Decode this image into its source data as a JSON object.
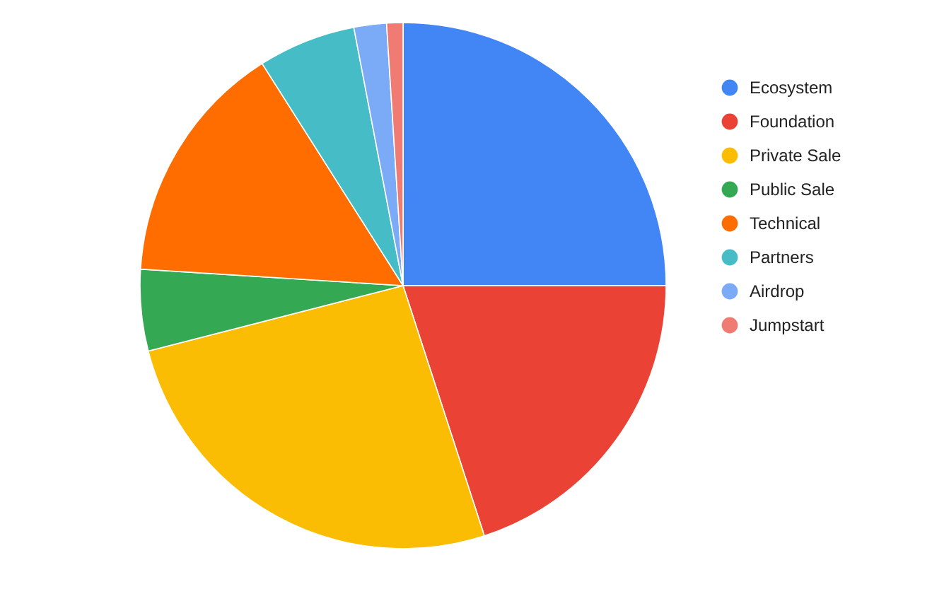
{
  "chart_data": {
    "type": "pie",
    "categories": [
      "Ecosystem",
      "Foundation",
      "Private Sale",
      "Public Sale",
      "Technical",
      "Partners",
      "Airdrop",
      "Jumpstart"
    ],
    "values": [
      25,
      20,
      26,
      5,
      15,
      6,
      2,
      1
    ],
    "colors": [
      "#4285f4",
      "#ea4335",
      "#fbbc04",
      "#34a853",
      "#ff6d01",
      "#46bdc6",
      "#7baaf7",
      "#f07b72"
    ],
    "legend": "top right"
  }
}
